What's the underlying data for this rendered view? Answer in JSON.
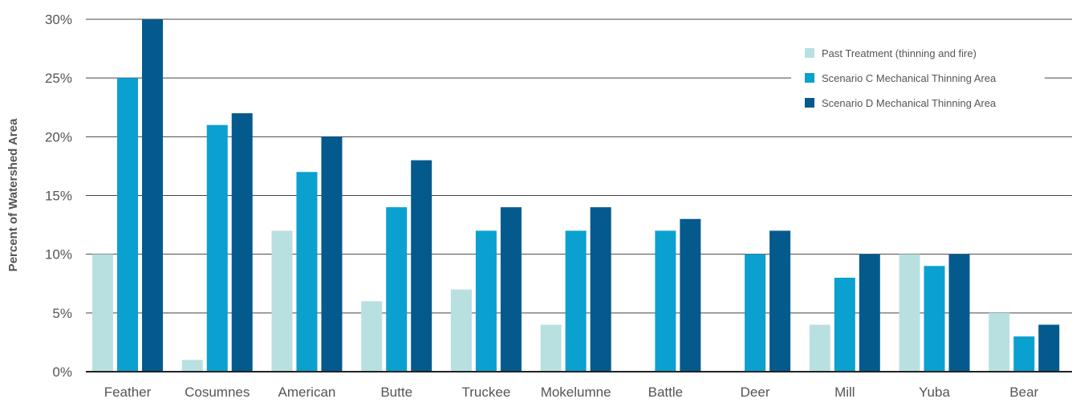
{
  "chart_data": {
    "type": "bar",
    "title": "",
    "xlabel": "",
    "ylabel": "Percent of Watershed Area",
    "ylim": [
      0,
      30
    ],
    "yticks": [
      "0%",
      "5%",
      "10%",
      "15%",
      "20%",
      "25%",
      "30%"
    ],
    "ytick_values": [
      0,
      5,
      10,
      15,
      20,
      25,
      30
    ],
    "grid": true,
    "legend_position": "top-right",
    "categories": [
      "Feather",
      "Cosumnes",
      "American",
      "Butte",
      "Truckee",
      "Mokelumne",
      "Battle",
      "Deer",
      "Mill",
      "Yuba",
      "Bear"
    ],
    "series": [
      {
        "name": "Past Treatment (thinning and fire)",
        "color": "#b9e0e0",
        "values": [
          10,
          1,
          12,
          6,
          7,
          4,
          0,
          0,
          4,
          10,
          5
        ]
      },
      {
        "name": "Scenario C Mechanical Thinning Area",
        "color": "#0aa0cf",
        "values": [
          25,
          21,
          17,
          14,
          12,
          12,
          12,
          10,
          8,
          9,
          3
        ]
      },
      {
        "name": "Scenario D Mechanical Thinning Area",
        "color": "#045a8d",
        "values": [
          30,
          22,
          20,
          18,
          14,
          14,
          13,
          12,
          10,
          10,
          4
        ]
      }
    ]
  }
}
